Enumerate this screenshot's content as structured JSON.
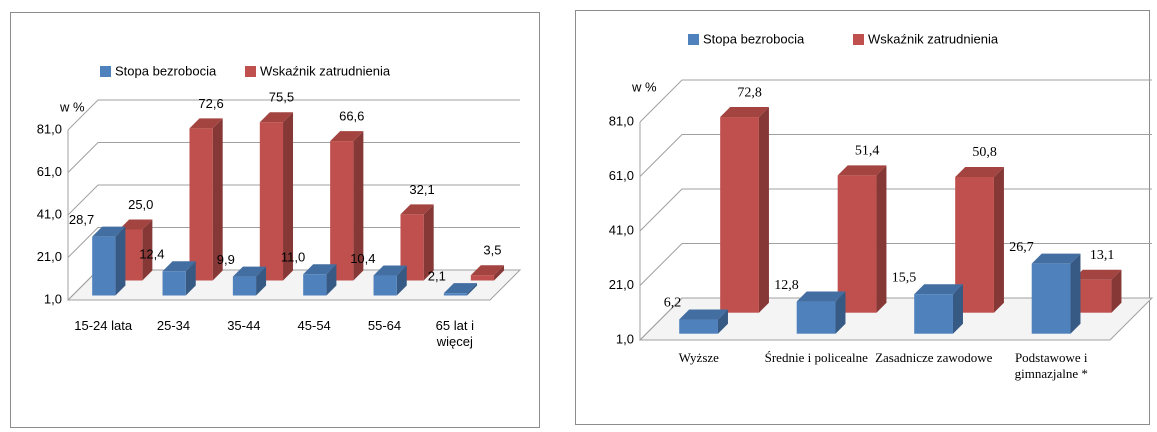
{
  "chart_data": [
    {
      "type": "bar3d",
      "y_label": "w %",
      "categories": [
        "15-24 lata",
        "25-34",
        "35-44",
        "45-54",
        "55-64",
        "65 lat i więcej"
      ],
      "series": [
        {
          "name": "Stopa bezrobocia",
          "color": "#4f81bd",
          "values": [
            28.7,
            12.4,
            9.9,
            11.0,
            10.4,
            2.1
          ],
          "value_labels": [
            "28,7",
            "12,4",
            "9,9",
            "11,0",
            "10,4",
            "2,1"
          ]
        },
        {
          "name": "Wskaźnik zatrudnienia",
          "color": "#c0504d",
          "values": [
            25.0,
            72.6,
            75.5,
            66.6,
            32.1,
            3.5
          ],
          "value_labels": [
            "25,0",
            "72,6",
            "75,5",
            "66,6",
            "32,1",
            "3,5"
          ]
        }
      ],
      "ylim": [
        1,
        81
      ],
      "yticks": [
        {
          "value": 1,
          "label": "1,0"
        },
        {
          "value": 21,
          "label": "21,0"
        },
        {
          "value": 41,
          "label": "41,0"
        },
        {
          "value": 61,
          "label": "61,0"
        },
        {
          "value": 81,
          "label": "81,0"
        }
      ],
      "grid": true
    },
    {
      "type": "bar3d",
      "y_label": "w %",
      "categories": [
        "Wyższe",
        "Średnie i policealne",
        "Zasadnicze zawodowe",
        "Podstawowe i gimnazjalne *"
      ],
      "series": [
        {
          "name": "Stopa bezrobocia",
          "color": "#4f81bd",
          "values": [
            6.2,
            12.8,
            15.5,
            26.7
          ],
          "value_labels": [
            "6,2",
            "12,8",
            "15,5",
            "26,7"
          ]
        },
        {
          "name": "Wskaźnik zatrudnienia",
          "color": "#c0504d",
          "values": [
            72.8,
            51.4,
            50.8,
            13.1
          ],
          "value_labels": [
            "72,8",
            "51,4",
            "50,8",
            "13,1"
          ]
        }
      ],
      "ylim": [
        1,
        81
      ],
      "yticks": [
        {
          "value": 1,
          "label": "1,0"
        },
        {
          "value": 21,
          "label": "21,0"
        },
        {
          "value": 41,
          "label": "41,0"
        },
        {
          "value": 61,
          "label": "61,0"
        },
        {
          "value": 81,
          "label": "81,0"
        }
      ],
      "grid": true
    }
  ]
}
